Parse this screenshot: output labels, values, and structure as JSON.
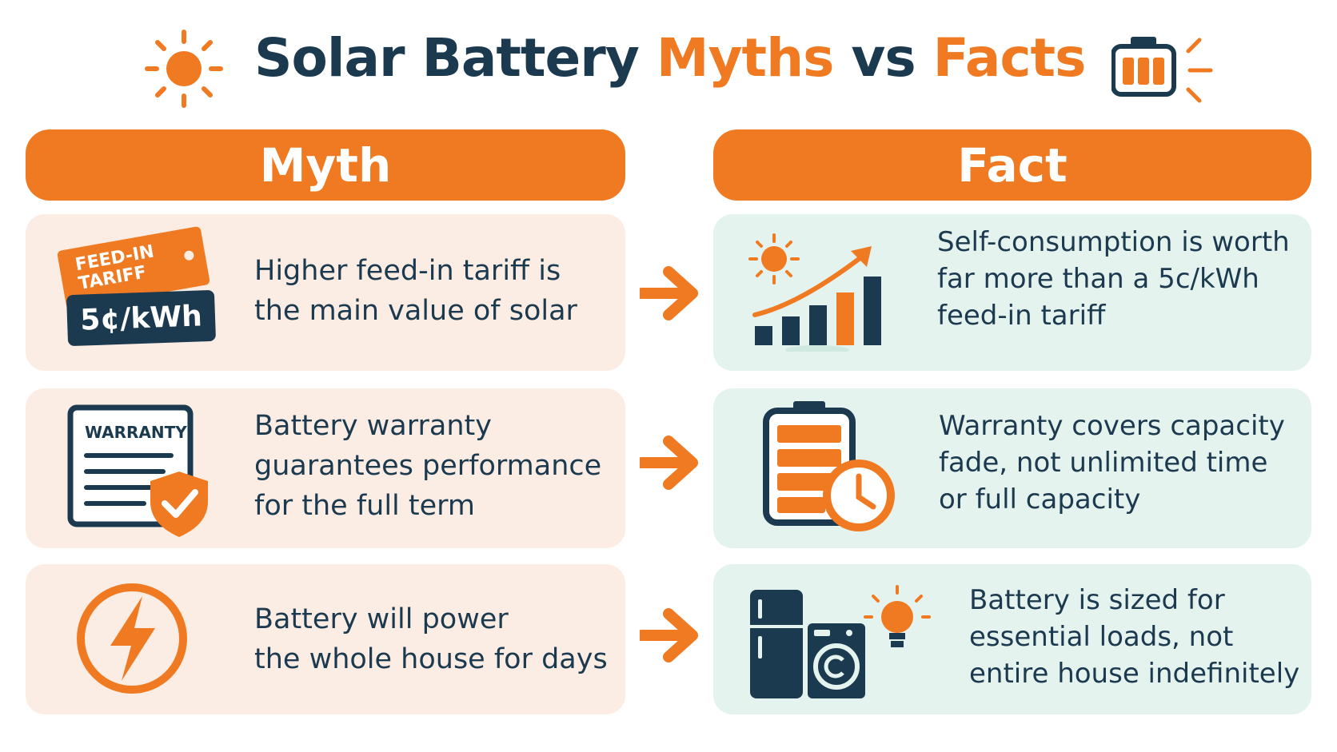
{
  "title": {
    "part1": "Solar Battery",
    "part2": "Myths",
    "part3": "vs",
    "part4": "Facts"
  },
  "headers": {
    "myth": "Myth",
    "fact": "Fact"
  },
  "colors": {
    "orange": "#f07a22",
    "navy": "#1c3a4f",
    "myth_card": "#fcede4",
    "fact_card": "#e5f3ef"
  },
  "rows": [
    {
      "myth_icon": "feed-in-tariff-tag-icon",
      "tag_top": "FEED-IN\nTARIFF",
      "tag_price": "5¢/kWh",
      "myth_text": "Higher feed-in tariff is\nthe main value of solar",
      "fact_icon": "growth-chart-icon",
      "fact_text": "Self-consumption is worth\nfar more than a 5c/kWh\nfeed-in tariff"
    },
    {
      "myth_icon": "warranty-document-icon",
      "warranty_label": "WARRANTY",
      "myth_text": "Battery warranty\nguarantees performance\nfor the full term",
      "fact_icon": "battery-clock-icon",
      "fact_text": "Warranty covers capacity\nfade, not unlimited time\nor full capacity"
    },
    {
      "myth_icon": "lightning-icon",
      "myth_text": "Battery will power\nthe whole house for days",
      "fact_icon": "appliances-icon",
      "fact_text": "Battery is sized for\nessential loads, not\nentire house indefinitely"
    }
  ]
}
